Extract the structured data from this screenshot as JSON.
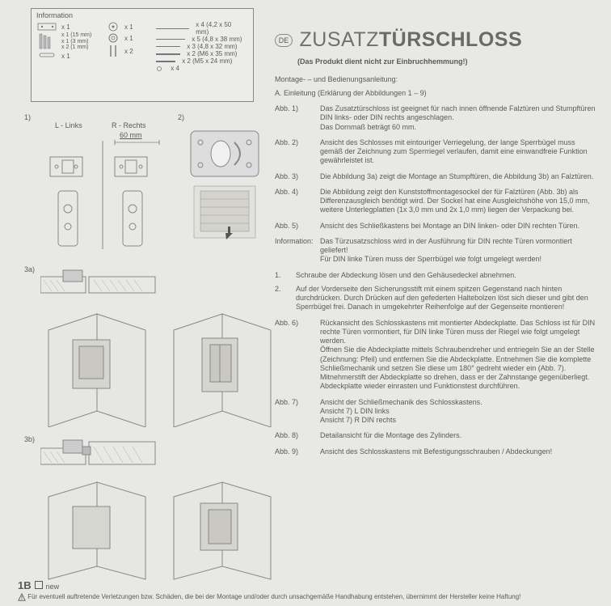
{
  "info": {
    "label": "Information",
    "parts_left": [
      {
        "qty": "x 1"
      },
      {
        "qty": "x 1 (15 mm)\nx 1 (3 mm)\nx 2 (1 mm)"
      },
      {
        "qty": "x 1"
      }
    ],
    "parts_mid": [
      {
        "qty": "x 1"
      },
      {
        "qty": "x 1"
      },
      {
        "qty": "x 2"
      }
    ],
    "parts_right": [
      "x 4 (4,2 x 50 mm)",
      "x 5 (4,8 x 38 mm)",
      "x 3 (4,8 x 32 mm)",
      "x 2 (M6 x 35 mm)",
      "x 2 (M5 x 24 mm)",
      "x 4"
    ]
  },
  "header": {
    "lang_badge": "DE",
    "title_part1": "ZUSATZ",
    "title_part2": "TÜRSCHLOSS",
    "subtitle": "(Das Produkt dient nicht zur Einbruchhemmung!)"
  },
  "body": {
    "montage_head": "Montage- – und Bedienungsanleitung:",
    "einleitung": "A. Einleitung (Erklärung der Abbildungen 1 – 9)",
    "abb": [
      {
        "label": "Abb. 1)",
        "text": "Das Zusatztürschloss ist geeignet für nach innen öffnende Falztüren und Stumpftüren DIN links- oder DIN rechts angeschlagen.\nDas Dornmaß beträgt 60 mm."
      },
      {
        "label": "Abb. 2)",
        "text": "Ansicht des Schlosses mit eintouriger Verriegelung, der lange Sperrbügel muss gemäß der Zeichnung zum Sperrriegel verlaufen, damit eine einwandfreie Funktion gewährleistet ist."
      },
      {
        "label": "Abb. 3)",
        "text": "Die Abbildung 3a) zeigt die Montage an Stumpftüren, die Abbildung 3b) an Falztüren."
      },
      {
        "label": "Abb. 4)",
        "text": "Die Abbildung zeigt den Kunststoffmontagesockel der für Falztüren (Abb. 3b) als Differenzausgleich benötigt wird. Der Sockel hat eine Ausgleichshöhe von 15,0 mm, weitere Unterlegplatten (1x 3,0 mm und 2x 1,0 mm) liegen der Verpackung bei."
      },
      {
        "label": "Abb. 5)",
        "text": "Ansicht des Schließkastens bei Montage an DIN linken- oder DIN rechten Türen."
      }
    ],
    "information": {
      "label": "Information:",
      "text": "Das Türzusatzschloss wird in der Ausführung für DIN rechte Türen vormontiert geliefert!\nFür DIN linke Türen muss der Sperrbügel wie folgt umgelegt werden!"
    },
    "steps": [
      {
        "n": "1.",
        "text": "Schraube der Abdeckung lösen und den Gehäusedeckel abnehmen."
      },
      {
        "n": "2.",
        "text": "Auf der Vorderseite den Sicherungsstift mit einem spitzen Gegenstand nach hinten durchdrücken. Durch Drücken auf den gefederten Haltebolzen löst sich dieser und gibt den Sperrbügel frei. Danach in umgekehrter Reihenfolge auf der Gegenseite montieren!"
      }
    ],
    "abb2": [
      {
        "label": "Abb. 6)",
        "text": "Rückansicht des Schlosskastens mit montierter Abdeckplatte. Das Schloss ist für DIN rechte Türen vormontiert, für DIN linke Türen muss der Riegel wie folgt umgelegt werden.\nÖffnen Sie die Abdeckplatte mittels Schraubendreher und entriegeln Sie an der Stelle (Zeichnung: Pfeil) und entfernen Sie die Abdeckplatte. Entnehmen Sie die komplette Schließmechanik und setzen Sie diese um 180° gedreht wieder ein (Abb. 7).\nMitnehmerstift der Abdeckplatte so drehen, dass er der Zahnstange gegenüberliegt. Abdeckplatte wieder einrasten und Funktionstest durchführen."
      },
      {
        "label": "Abb. 7)",
        "text": "Ansicht der Schließmechanik des Schlosskastens.\nAnsicht 7) L     DIN links\nAnsicht 7) R    DIN rechts"
      },
      {
        "label": "Abb. 8)",
        "text": "Detailansicht für die Montage des Zylinders."
      },
      {
        "label": "Abb. 9)",
        "text": "Ansicht des Schlosskastens mit Befestigungsschrauben / Abdeckungen!"
      }
    ]
  },
  "diagrams": {
    "d1": "1)",
    "d2": "2)",
    "d3a": "3a)",
    "d3b": "3b)",
    "l_links": "L - Links",
    "r_rechts": "R - Rechts",
    "mm60": "60 mm"
  },
  "footer": {
    "code": "1B",
    "new": "new",
    "warning": "Für eventuell auftretende Verletzungen bzw. Schäden, die bei der Montage und/oder durch unsachgemäße Handhabung entstehen, übernimmt der Hersteller keine Haftung!"
  },
  "colors": {
    "bg": "#e8e8e4",
    "text": "#5a5a5a",
    "line": "#888888"
  }
}
